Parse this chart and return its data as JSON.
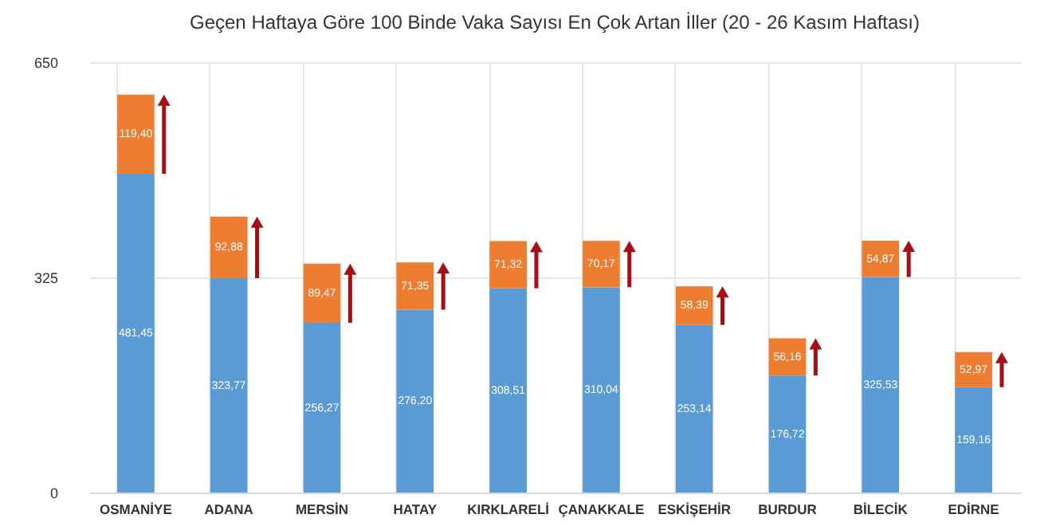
{
  "chart_data": {
    "type": "bar",
    "title": "Geçen Haftaya Göre 100 Binde Vaka Sayısı En Çok Artan İller (20 - 26 Kasım Haftası)",
    "categories": [
      "OSMANİYE",
      "ADANA",
      "MERSİN",
      "HATAY",
      "KIRKLARELİ",
      "ÇANAKKALE",
      "ESKİŞEHİR",
      "BURDUR",
      "BİLECİK",
      "EDİRNE"
    ],
    "stacked": true,
    "series": [
      {
        "color": "#5b9bd5",
        "values": [
          481.45,
          323.77,
          256.27,
          276.2,
          308.51,
          310.04,
          253.14,
          176.72,
          325.53,
          159.16
        ],
        "value_labels": [
          "481,45",
          "323,77",
          "256,27",
          "276,20",
          "308,51",
          "310,04",
          "253,14",
          "176,72",
          "325,53",
          "159,16"
        ]
      },
      {
        "color": "#ed7d31",
        "values": [
          119.4,
          92.88,
          89.47,
          71.35,
          71.32,
          70.17,
          58.39,
          56.16,
          54.87,
          52.97
        ],
        "value_labels": [
          "119,40",
          "92,88",
          "89,47",
          "71,35",
          "71,32",
          "70,17",
          "58,39",
          "56,16",
          "54,87",
          "52,97"
        ]
      }
    ],
    "ylim": [
      0,
      650
    ],
    "yticks": [
      0,
      325,
      650
    ],
    "grid": true
  }
}
